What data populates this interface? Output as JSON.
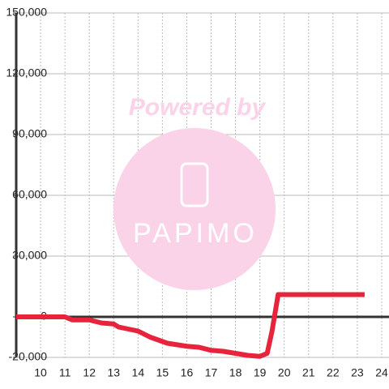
{
  "chart_data": {
    "type": "line",
    "watermark": {
      "line1": "Powered by",
      "line2": "PAPIMO"
    },
    "x": [
      9,
      11,
      11.3,
      12,
      12.5,
      13,
      13.2,
      14,
      14.5,
      15.2,
      16,
      16.5,
      17,
      17.5,
      18,
      18.5,
      19,
      19.3,
      19.5,
      19.75,
      23.3
    ],
    "series": [
      {
        "color": "#e8243c",
        "values": [
          0,
          0,
          -1500,
          -1500,
          -3000,
          -3500,
          -5000,
          -7000,
          -10000,
          -13000,
          -14500,
          -15000,
          -16500,
          -17000,
          -18000,
          -19000,
          -19500,
          -18000,
          -7000,
          11000,
          11000
        ]
      }
    ],
    "xlim": [
      9,
      24.3
    ],
    "ylim": [
      -20000,
      150000
    ],
    "xticks": [
      10,
      11,
      12,
      13,
      14,
      15,
      16,
      17,
      18,
      19,
      20,
      21,
      22,
      23,
      24
    ],
    "yticks": [
      {
        "value": -20000,
        "label": "-20,000"
      },
      0,
      {
        "value": 30000,
        "label": "30,000"
      },
      {
        "value": 60000,
        "label": "60,000"
      },
      {
        "value": 90000,
        "label": "90,000"
      },
      {
        "value": 120000,
        "label": "120,000"
      },
      {
        "value": 150000,
        "label": "150,000"
      }
    ],
    "grid": true
  }
}
